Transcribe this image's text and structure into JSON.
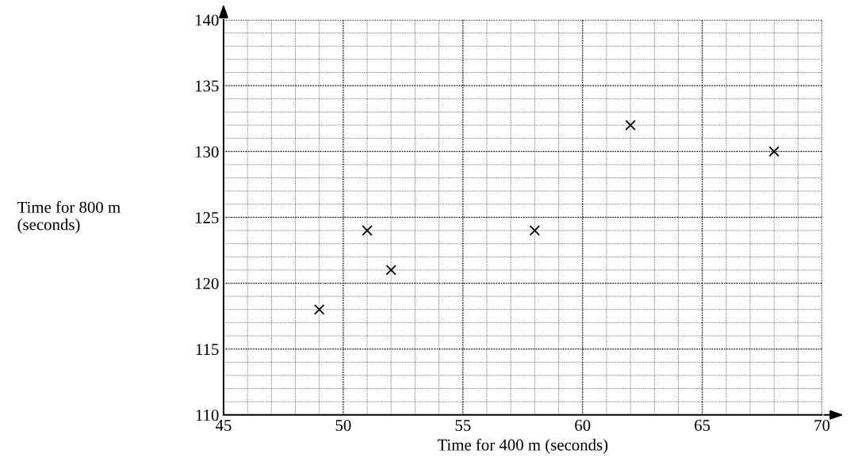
{
  "chart_data": {
    "type": "scatter",
    "xlabel": "Time for 400 m (seconds)",
    "ylabel": "Time for 800 m\n(seconds)",
    "x": [
      49,
      51,
      52,
      58,
      62,
      68
    ],
    "series": [
      {
        "color": "#000000",
        "values": [
          118,
          124,
          121,
          124,
          132,
          130
        ]
      }
    ],
    "xlim": [
      45,
      70
    ],
    "xticks": [
      45,
      50,
      55,
      60,
      65,
      70
    ],
    "ylim": [
      110,
      140
    ],
    "yticks": [
      110,
      115,
      120,
      125,
      130,
      135,
      140
    ],
    "grid": true,
    "marker": "cross"
  }
}
